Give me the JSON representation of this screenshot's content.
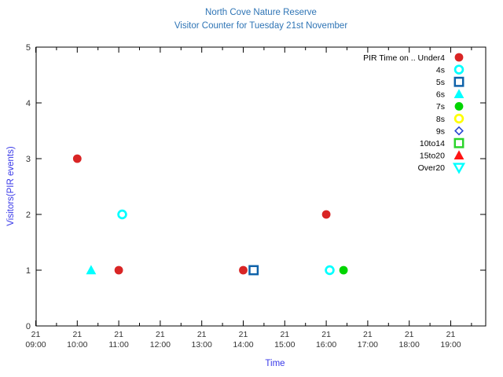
{
  "chart_data": {
    "type": "scatter",
    "title": "North Cove Nature Reserve",
    "subtitle": "Visitor Counter for Tuesday 21st November",
    "xlabel": "Time",
    "ylabel": "Visitors(PIR events)",
    "xlim_hours": [
      9.0,
      19.8
    ],
    "ylim": [
      0,
      5
    ],
    "grid": false,
    "legend_position": "top-right-inside",
    "x_ticks": [
      {
        "day": "21",
        "time": "09:00"
      },
      {
        "day": "21",
        "time": "10:00"
      },
      {
        "day": "21",
        "time": "11:00"
      },
      {
        "day": "21",
        "time": "12:00"
      },
      {
        "day": "21",
        "time": "13:00"
      },
      {
        "day": "21",
        "time": "14:00"
      },
      {
        "day": "21",
        "time": "15:00"
      },
      {
        "day": "21",
        "time": "16:00"
      },
      {
        "day": "21",
        "time": "17:00"
      },
      {
        "day": "21",
        "time": "18:00"
      },
      {
        "day": "21",
        "time": "19:00"
      }
    ],
    "x_minor_tick_minutes": 30,
    "y_ticks": [
      0,
      1,
      2,
      3,
      4,
      5
    ],
    "series": [
      {
        "name": "PIR Time on .. Under4",
        "marker": "filled-circle",
        "color": "#d92525",
        "points": [
          {
            "time": "10:00",
            "value": 3
          },
          {
            "time": "11:00",
            "value": 1
          },
          {
            "time": "14:00",
            "value": 1
          },
          {
            "time": "16:00",
            "value": 2
          }
        ]
      },
      {
        "name": "4s",
        "marker": "open-circle",
        "color": "#00ffff",
        "points": [
          {
            "time": "11:05",
            "value": 2
          },
          {
            "time": "16:05",
            "value": 1
          }
        ]
      },
      {
        "name": "5s",
        "marker": "open-square",
        "color": "#0f62aa",
        "points": [
          {
            "time": "14:15",
            "value": 1
          }
        ]
      },
      {
        "name": "6s",
        "marker": "filled-triangle-up",
        "color": "#00ffff",
        "points": [
          {
            "time": "10:20",
            "value": 1
          }
        ]
      },
      {
        "name": "7s",
        "marker": "filled-circle",
        "color": "#00d500",
        "points": [
          {
            "time": "16:25",
            "value": 1
          }
        ]
      },
      {
        "name": "8s",
        "marker": "open-circle",
        "color": "#ffff00",
        "points": []
      },
      {
        "name": "9s",
        "marker": "open-diamond",
        "color": "#2946d2",
        "points": []
      },
      {
        "name": "10to14",
        "marker": "open-square",
        "color": "#2ad42a",
        "points": []
      },
      {
        "name": "15to20",
        "marker": "filled-triangle-up",
        "color": "#ff1414",
        "points": []
      },
      {
        "name": "Over20",
        "marker": "open-triangle-down",
        "color": "#00ffff",
        "points": []
      }
    ],
    "colors": {
      "title": "#2e74b5",
      "axis_label": "#3838e8",
      "tick_label": "#333333",
      "legend_text": "#000000",
      "border": "#000000"
    }
  }
}
